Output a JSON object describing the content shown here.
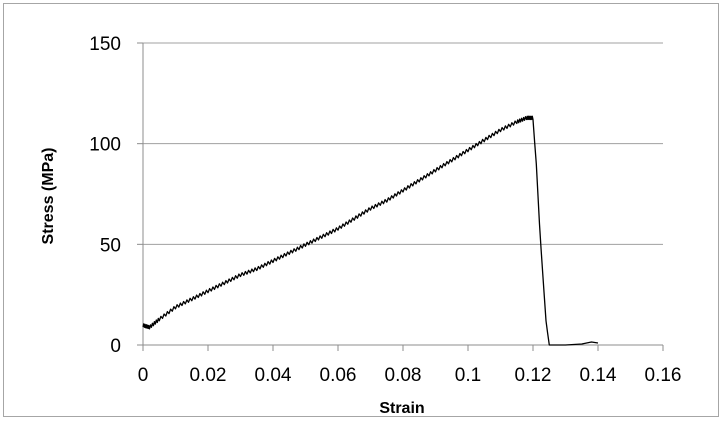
{
  "chart_data": {
    "type": "line",
    "title": "",
    "xlabel": "Strain",
    "ylabel": "Stress (MPa)",
    "xlim": [
      0,
      0.16
    ],
    "ylim": [
      0,
      150
    ],
    "x_ticks": [
      "0",
      "0.02",
      "0.04",
      "0.06",
      "0.08",
      "0.1",
      "0.12",
      "0.14",
      "0.16"
    ],
    "y_ticks": [
      "0",
      "50",
      "100",
      "150"
    ],
    "grid": "horizontal",
    "legend": "none",
    "line_color": "#000000",
    "series": [
      {
        "x": [
          0,
          0.002,
          0.005,
          0.01,
          0.015,
          0.02,
          0.025,
          0.03,
          0.035,
          0.04,
          0.045,
          0.05,
          0.055,
          0.06,
          0.065,
          0.07,
          0.075,
          0.08,
          0.085,
          0.09,
          0.095,
          0.1,
          0.105,
          0.11,
          0.115,
          0.118,
          0.12,
          0.121,
          0.122,
          0.123,
          0.124,
          0.125,
          0.127,
          0.13,
          0.135,
          0.138,
          0.14
        ],
        "y": [
          9,
          8,
          12,
          18,
          22,
          26,
          30,
          34,
          37,
          41,
          45,
          49,
          53,
          57,
          62,
          67,
          71,
          76,
          81,
          86,
          91,
          96,
          101,
          106,
          110,
          112,
          112,
          90,
          60,
          35,
          12,
          0,
          0,
          0,
          0.5,
          1.5,
          1
        ]
      }
    ]
  }
}
